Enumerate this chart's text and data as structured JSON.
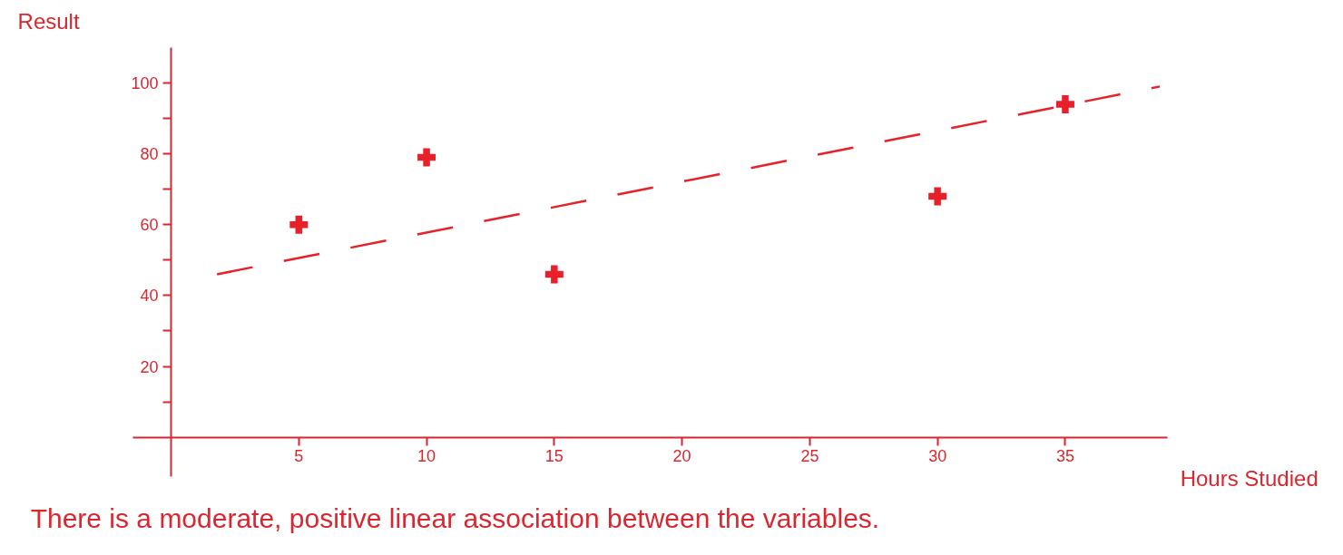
{
  "chart_data": {
    "type": "scatter",
    "xlabel": "Hours Studied",
    "ylabel": "Result",
    "annotations": [
      "There is a moderate, positive linear association between the variables."
    ],
    "series": [
      {
        "color": "#e8202a",
        "x": [
          5,
          10,
          15,
          30,
          35
        ],
        "values": [
          60,
          79,
          46,
          68,
          94
        ],
        "marker": "cross"
      },
      {
        "type": "line",
        "color": "#e8202a",
        "x": [
          1.8,
          38.7
        ],
        "values": [
          46,
          99
        ],
        "line_style": "dashed"
      }
    ],
    "xlim": [
      -1.5,
      39
    ],
    "ylim": [
      -11,
      110
    ],
    "xticks": [
      5,
      10,
      15,
      20,
      25,
      30,
      35
    ],
    "yticks": [
      {
        "value": 10,
        "label": null
      },
      20,
      {
        "value": 30,
        "label": null
      },
      40,
      {
        "value": 50,
        "label": null
      },
      60,
      {
        "value": 70,
        "label": null
      },
      80,
      {
        "value": 90,
        "label": null
      },
      100
    ],
    "grid": false
  }
}
